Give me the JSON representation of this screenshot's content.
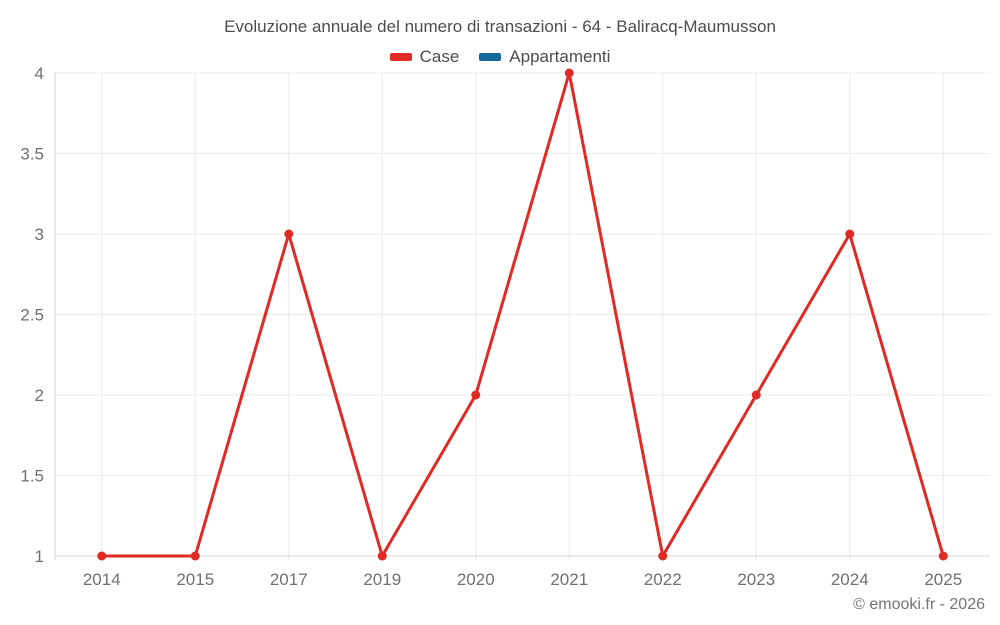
{
  "title": "Evoluzione annuale del numero di transazioni - 64 - Baliracq-Maumusson",
  "watermark": "© emooki.fr - 2026",
  "legend": {
    "items": [
      {
        "label": "Case",
        "color": "#e02a25"
      },
      {
        "label": "Appartamenti",
        "color": "#17689b"
      }
    ]
  },
  "colors": {
    "case_red": "#e02a25",
    "appartamenti_blue": "#17689b",
    "gridline": "#ebebeb",
    "axis_line": "#d6d6d6",
    "tick_text": "#707070",
    "title_text": "#4c4c4c"
  },
  "chart_data": {
    "type": "line",
    "title": "Evoluzione annuale del numero di transazioni - 64 - Baliracq-Maumusson",
    "categories": [
      "2014",
      "2015",
      "2017",
      "2019",
      "2020",
      "2021",
      "2022",
      "2023",
      "2024",
      "2025"
    ],
    "series": [
      {
        "name": "Case",
        "color": "#e02a25",
        "values": [
          1,
          1,
          3,
          1,
          2,
          4,
          1,
          2,
          3,
          1
        ]
      },
      {
        "name": "Appartamenti",
        "color": "#17689b",
        "values": []
      }
    ],
    "xlabel": "",
    "ylabel": "",
    "ylim": [
      1,
      4
    ],
    "yticks": [
      1,
      1.5,
      2,
      2.5,
      3,
      3.5,
      4
    ],
    "grid": true,
    "legend_position": "top",
    "marker": "circle",
    "marker_radius": 4.5,
    "line_width": 3
  }
}
